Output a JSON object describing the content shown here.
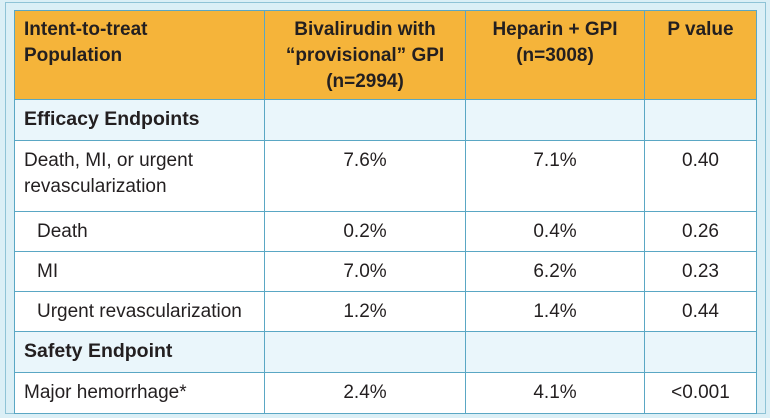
{
  "header": {
    "col1": [
      "Intent-to-treat",
      "Population"
    ],
    "col2": [
      "Bivalirudin with",
      "“provisional” GPI",
      "(n=2994)"
    ],
    "col3": [
      "Heparin + GPI",
      "(n=3008)"
    ],
    "col4": [
      "P value"
    ]
  },
  "rows": [
    {
      "type": "section",
      "label": "Efficacy Endpoints"
    },
    {
      "type": "data",
      "label": [
        "Death, MI, or urgent",
        "revascularization"
      ],
      "biv": "7.6%",
      "hep": "7.1%",
      "p": "0.40"
    },
    {
      "type": "data",
      "indent": true,
      "label": [
        "Death"
      ],
      "biv": "0.2%",
      "hep": "0.4%",
      "p": "0.26"
    },
    {
      "type": "data",
      "indent": true,
      "label": [
        "MI"
      ],
      "biv": "7.0%",
      "hep": "6.2%",
      "p": "0.23"
    },
    {
      "type": "data",
      "indent": true,
      "label": [
        "Urgent revascularization"
      ],
      "biv": "1.2%",
      "hep": "1.4%",
      "p": "0.44"
    },
    {
      "type": "section",
      "label": "Safety Endpoint"
    },
    {
      "type": "data",
      "label": [
        "Major hemorrhage*"
      ],
      "biv": "2.4%",
      "hep": "4.1%",
      "p": "<0.001"
    }
  ],
  "colors": {
    "header_bg": "#f5b43a",
    "border": "#5aa7c4",
    "section_bg": "#eaf6fb",
    "frame_bg": "#dbeff6"
  }
}
